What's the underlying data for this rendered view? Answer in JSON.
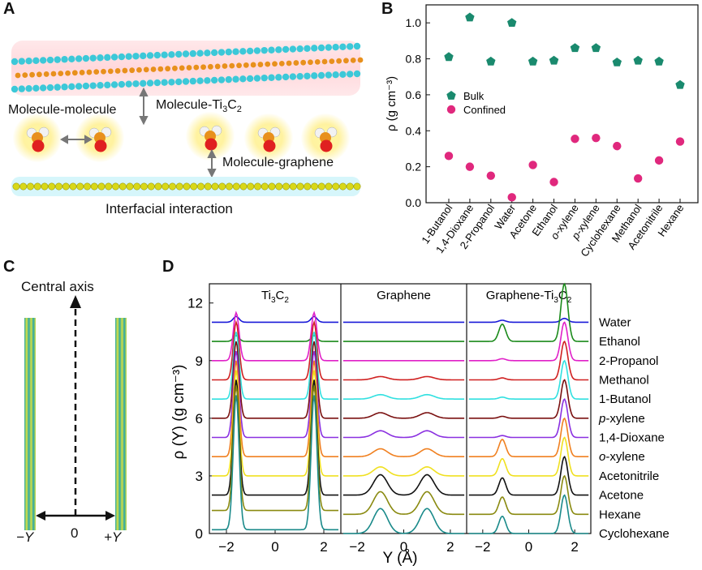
{
  "panels": {
    "a": "A",
    "b": "B",
    "c": "C",
    "d": "D"
  },
  "panel_a": {
    "mm_label": "Molecule-molecule",
    "mt_label_prefix": "Molecule-Ti",
    "mt_sub1": "3",
    "mt_mid": "C",
    "mt_sub2": "2",
    "mg_label": "Molecule-graphene",
    "caption": "Interfacial interaction"
  },
  "panel_c": {
    "axis_label": "Central axis",
    "zero": "0",
    "neg_y": "−Y",
    "pos_y": "+Y"
  },
  "colors": {
    "bulk": "#1a8a6e",
    "confined": "#e0287d"
  },
  "chart_data": [
    {
      "type": "scatter",
      "panel": "B",
      "title": "",
      "xlabel": "",
      "ylabel": "ρ (g cm⁻³)",
      "ylim": [
        0,
        1.1
      ],
      "yticks": [
        "0.0",
        "0.2",
        "0.4",
        "0.6",
        "0.8",
        "1.0"
      ],
      "categories": [
        "1-Butanol",
        "1,4-Dioxane",
        "2-Propanol",
        "Water",
        "Acetone",
        "Ethanol",
        "o-xylene",
        "p-xylene",
        "Cyclohexane",
        "Methanol",
        "Acetonitrile",
        "Hexane"
      ],
      "series": [
        {
          "name": "Bulk",
          "values": [
            0.81,
            1.03,
            0.785,
            1.0,
            0.785,
            0.79,
            0.86,
            0.86,
            0.78,
            0.79,
            0.785,
            0.655
          ]
        },
        {
          "name": "Confined",
          "values": [
            0.26,
            0.2,
            0.15,
            0.03,
            0.21,
            0.115,
            0.355,
            0.36,
            0.315,
            0.135,
            0.235,
            0.34
          ]
        }
      ],
      "legend": "middle-left"
    },
    {
      "type": "line",
      "panel": "D",
      "ylabel": "ρ (Y) (g cm⁻³)",
      "xlabel": "Y (Å)",
      "ylim": [
        0,
        13
      ],
      "yticks": [
        "0",
        "3",
        "6",
        "9",
        "12"
      ],
      "subplots": [
        {
          "title_prefix": "Ti",
          "title_sub1": "3",
          "title_mid": "C",
          "title_sub2": "2",
          "xticks": [
            "−2",
            "0",
            "2"
          ]
        },
        {
          "title": "Graphene",
          "xticks": [
            "−2",
            "0",
            "2"
          ]
        },
        {
          "title_prefix": "Graphene-Ti",
          "title_sub1": "3",
          "title_mid": "C",
          "title_sub2": "2",
          "xticks": [
            "−2",
            "0",
            "2"
          ]
        }
      ],
      "series": [
        {
          "name": "Water",
          "offset": 11,
          "color": "#1a1ad8"
        },
        {
          "name": "Ethanol",
          "offset": 10,
          "color": "#1a8a1a"
        },
        {
          "name": "2-Propanol",
          "offset": 9,
          "color": "#e020c8"
        },
        {
          "name": "Methanol",
          "offset": 8,
          "color": "#d02020"
        },
        {
          "name": "1-Butanol",
          "offset": 7,
          "color": "#30e0e0"
        },
        {
          "name": "p-xylene",
          "offset": 6,
          "color": "#7a1010"
        },
        {
          "name": "1,4-Dioxane",
          "offset": 5,
          "color": "#8a30e0"
        },
        {
          "name": "o-xylene",
          "offset": 4,
          "color": "#f08020"
        },
        {
          "name": "Acetonitrile",
          "offset": 3,
          "color": "#f0e020"
        },
        {
          "name": "Acetone",
          "offset": 2,
          "color": "#111111"
        },
        {
          "name": "Hexane",
          "offset": 1,
          "color": "#8a8a10"
        },
        {
          "name": "Cyclohexane",
          "offset": 0,
          "color": "#1a8a8a"
        }
      ],
      "series_label_prefix": {
        "p-xylene": "p",
        "o-xylene": "o"
      }
    }
  ]
}
